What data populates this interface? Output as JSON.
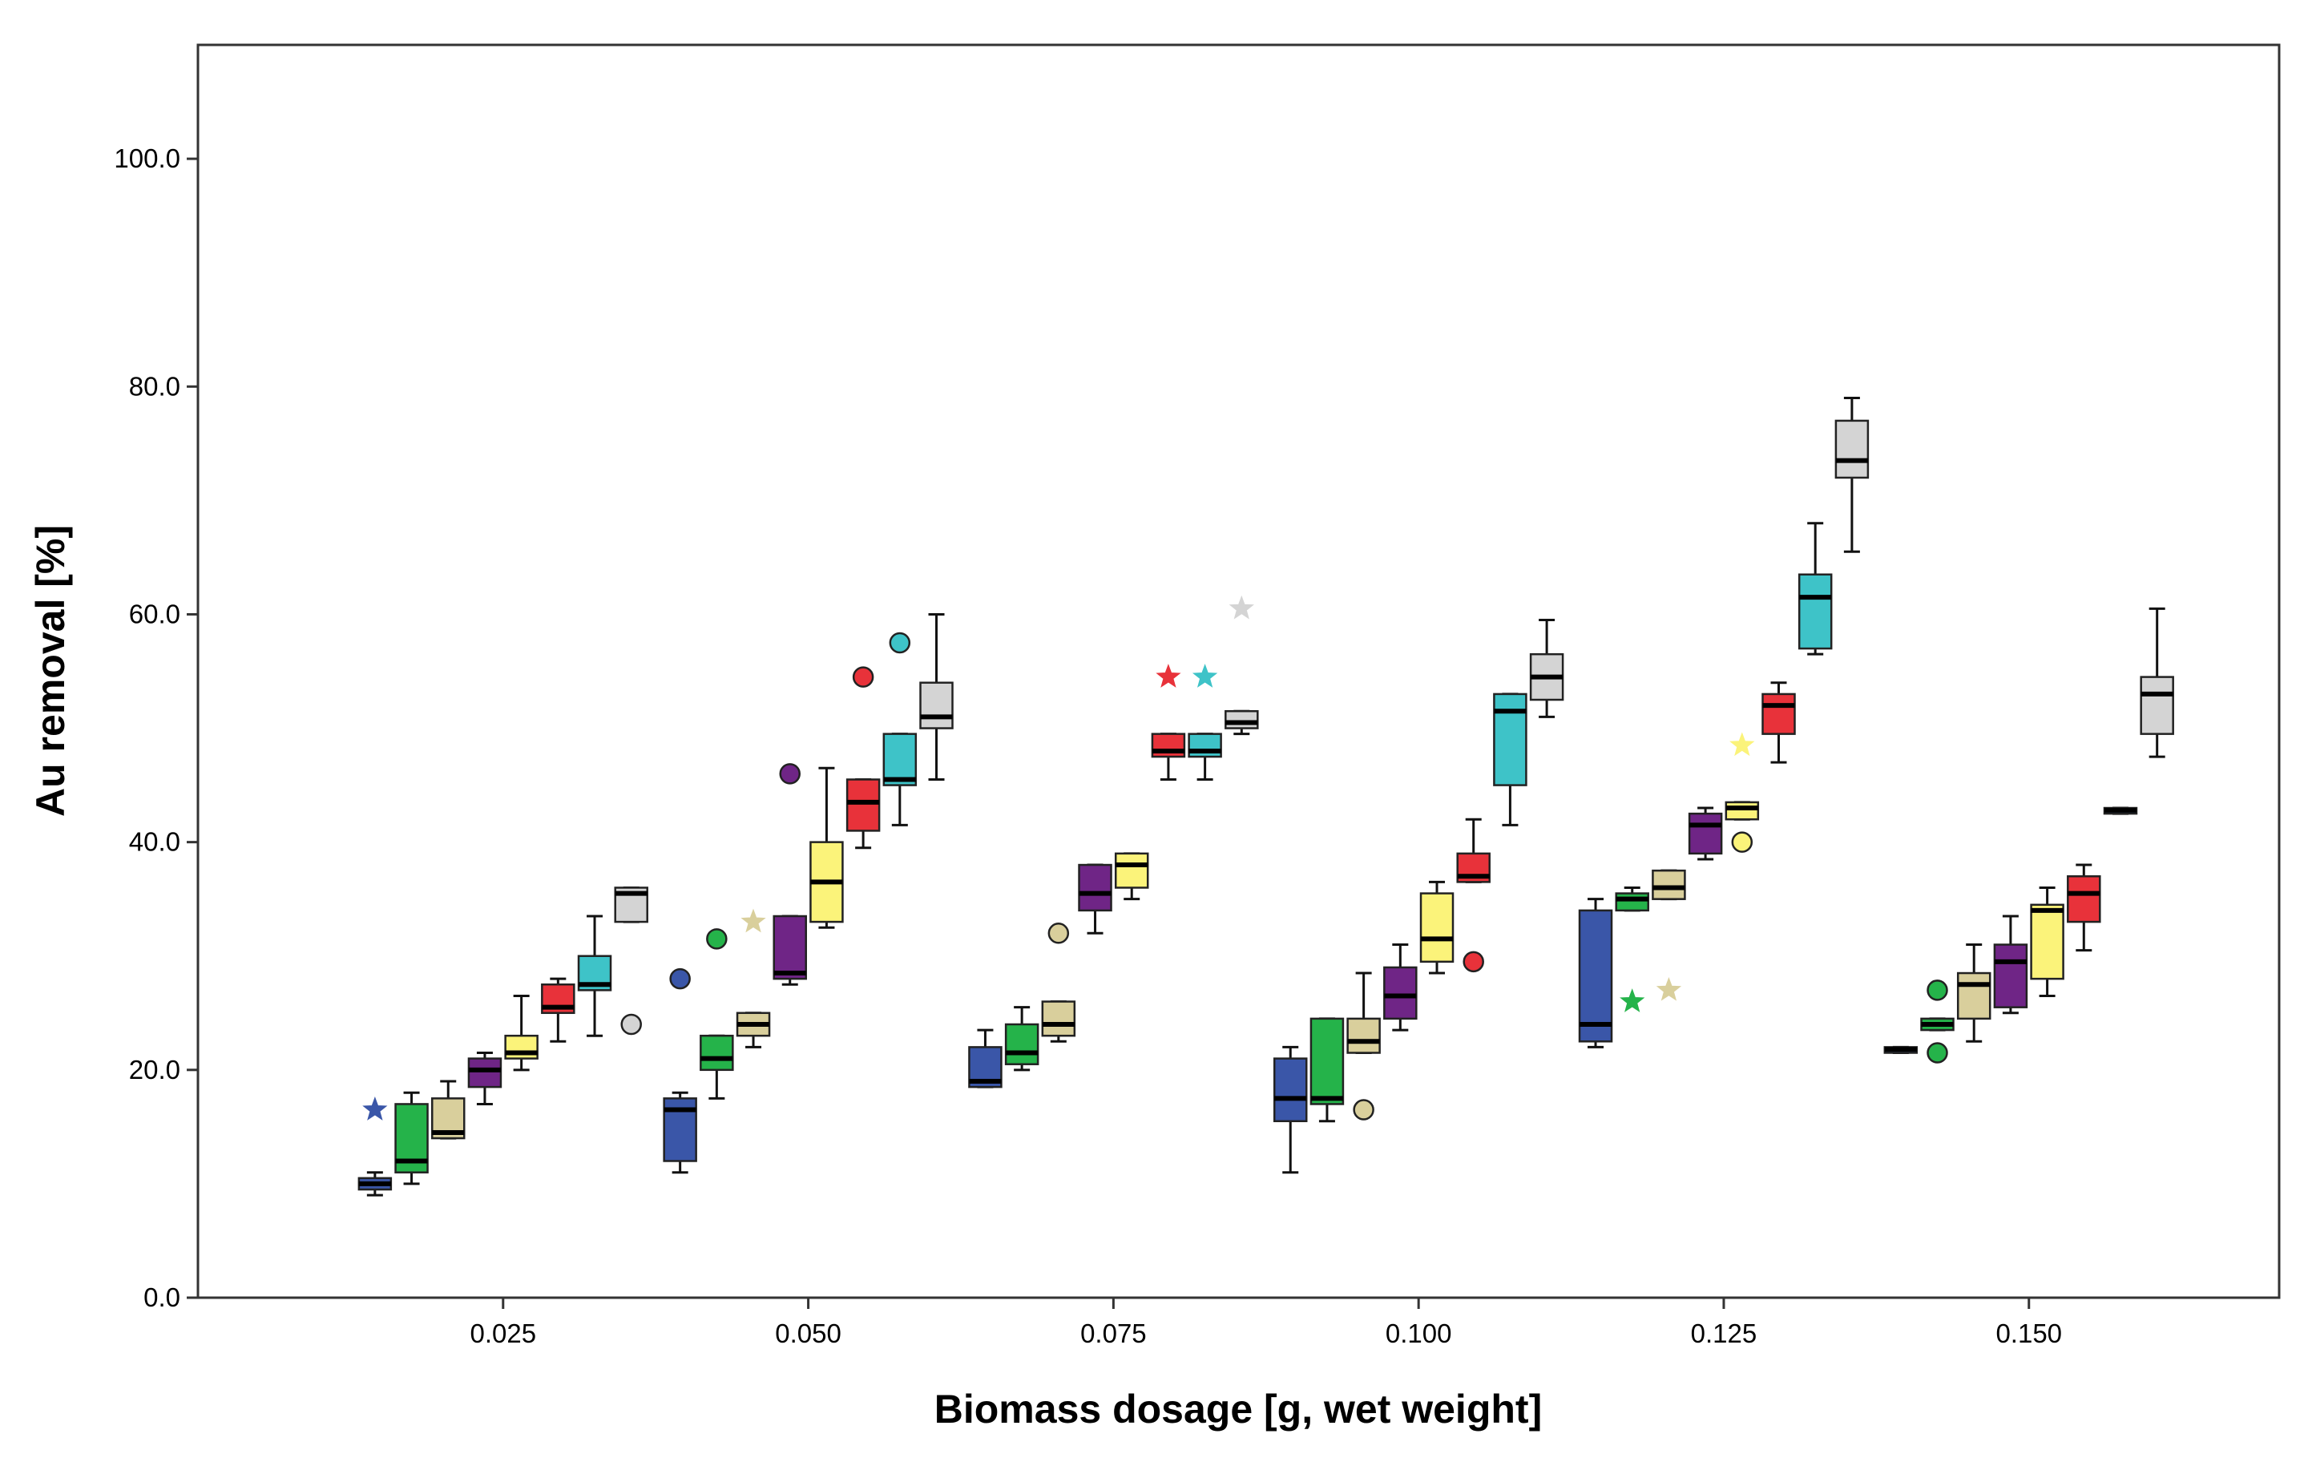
{
  "chart_data": {
    "type": "boxplot",
    "title": "",
    "xlabel": "Biomass dosage [g, wet weight]",
    "ylabel": "Au removal [%]",
    "xlim": [
      0.0,
      0.1705
    ],
    "ylim": [
      0.0,
      110.0
    ],
    "grid": false,
    "legend": "none",
    "x_ticks": [
      {
        "value": 0.025,
        "label": "0.025"
      },
      {
        "value": 0.05,
        "label": "0.050"
      },
      {
        "value": 0.075,
        "label": "0.075"
      },
      {
        "value": 0.1,
        "label": "0.100"
      },
      {
        "value": 0.125,
        "label": "0.125"
      },
      {
        "value": 0.15,
        "label": "0.150"
      }
    ],
    "y_ticks": [
      {
        "value": 0,
        "label": "0.0"
      },
      {
        "value": 20,
        "label": "20.0"
      },
      {
        "value": 40,
        "label": "40.0"
      },
      {
        "value": 60,
        "label": "60.0"
      },
      {
        "value": 80,
        "label": "80.0"
      },
      {
        "value": 100,
        "label": "100.0"
      }
    ],
    "series_colors": {
      "navy": "#3a56a8",
      "green": "#25b34a",
      "tan": "#d9cf9c",
      "purple": "#6f2586",
      "yellow": "#fbf37a",
      "red": "#e8323a",
      "cyan": "#3ec3c8",
      "gray": "#d4d4d4"
    },
    "boxes": [
      {
        "x": 0.0145,
        "series": "navy",
        "min": 9.0,
        "q1": 9.5,
        "median": 10.0,
        "q3": 10.5,
        "max": 11.0,
        "outliers": [
          {
            "y": 16.5,
            "type": "star"
          }
        ]
      },
      {
        "x": 0.0175,
        "series": "green",
        "min": 10.0,
        "q1": 11.0,
        "median": 12.0,
        "q3": 17.0,
        "max": 18.0,
        "outliers": []
      },
      {
        "x": 0.0205,
        "series": "tan",
        "min": 14.0,
        "q1": 14.0,
        "median": 14.5,
        "q3": 17.5,
        "max": 19.0,
        "outliers": []
      },
      {
        "x": 0.0235,
        "series": "purple",
        "min": 17.0,
        "q1": 18.5,
        "median": 20.0,
        "q3": 21.0,
        "max": 21.5,
        "outliers": []
      },
      {
        "x": 0.0265,
        "series": "yellow",
        "min": 20.0,
        "q1": 21.0,
        "median": 21.5,
        "q3": 23.0,
        "max": 26.5,
        "outliers": []
      },
      {
        "x": 0.0295,
        "series": "red",
        "min": 22.5,
        "q1": 25.0,
        "median": 25.5,
        "q3": 27.5,
        "max": 28.0,
        "outliers": []
      },
      {
        "x": 0.0325,
        "series": "cyan",
        "min": 23.0,
        "q1": 27.0,
        "median": 27.5,
        "q3": 30.0,
        "max": 33.5,
        "outliers": []
      },
      {
        "x": 0.0355,
        "series": "gray",
        "min": 33.0,
        "q1": 33.0,
        "median": 35.5,
        "q3": 36.0,
        "max": 36.0,
        "outliers": [
          {
            "y": 24.0,
            "type": "circle"
          }
        ]
      },
      {
        "x": 0.0395,
        "series": "navy",
        "min": 11.0,
        "q1": 12.0,
        "median": 16.5,
        "q3": 17.5,
        "max": 18.0,
        "outliers": [
          {
            "y": 28.0,
            "type": "circle"
          }
        ]
      },
      {
        "x": 0.0425,
        "series": "green",
        "min": 17.5,
        "q1": 20.0,
        "median": 21.0,
        "q3": 23.0,
        "max": 23.0,
        "outliers": [
          {
            "y": 31.5,
            "type": "circle"
          }
        ]
      },
      {
        "x": 0.0455,
        "series": "tan",
        "min": 22.0,
        "q1": 23.0,
        "median": 24.0,
        "q3": 25.0,
        "max": 25.0,
        "outliers": [
          {
            "y": 33.0,
            "type": "star"
          }
        ]
      },
      {
        "x": 0.0485,
        "series": "purple",
        "min": 27.5,
        "q1": 28.0,
        "median": 28.5,
        "q3": 33.5,
        "max": 33.5,
        "outliers": [
          {
            "y": 46.0,
            "type": "circle"
          }
        ]
      },
      {
        "x": 0.0515,
        "series": "yellow",
        "min": 32.5,
        "q1": 33.0,
        "median": 36.5,
        "q3": 40.0,
        "max": 46.5,
        "outliers": []
      },
      {
        "x": 0.0545,
        "series": "red",
        "min": 39.5,
        "q1": 41.0,
        "median": 43.5,
        "q3": 45.5,
        "max": 45.5,
        "outliers": [
          {
            "y": 54.5,
            "type": "circle"
          }
        ]
      },
      {
        "x": 0.0575,
        "series": "cyan",
        "min": 41.5,
        "q1": 45.0,
        "median": 45.5,
        "q3": 49.5,
        "max": 49.5,
        "outliers": [
          {
            "y": 57.5,
            "type": "circle"
          }
        ]
      },
      {
        "x": 0.0605,
        "series": "gray",
        "min": 45.5,
        "q1": 50.0,
        "median": 51.0,
        "q3": 54.0,
        "max": 60.0,
        "outliers": []
      },
      {
        "x": 0.0645,
        "series": "navy",
        "min": 18.5,
        "q1": 18.5,
        "median": 19.0,
        "q3": 22.0,
        "max": 23.5,
        "outliers": []
      },
      {
        "x": 0.0675,
        "series": "green",
        "min": 20.0,
        "q1": 20.5,
        "median": 21.5,
        "q3": 24.0,
        "max": 25.5,
        "outliers": []
      },
      {
        "x": 0.0705,
        "series": "tan",
        "min": 22.5,
        "q1": 23.0,
        "median": 24.0,
        "q3": 26.0,
        "max": 26.0,
        "outliers": [
          {
            "y": 32.0,
            "type": "circle"
          }
        ]
      },
      {
        "x": 0.0735,
        "series": "purple",
        "min": 32.0,
        "q1": 34.0,
        "median": 35.5,
        "q3": 38.0,
        "max": 38.0,
        "outliers": []
      },
      {
        "x": 0.0765,
        "series": "yellow",
        "min": 35.0,
        "q1": 36.0,
        "median": 38.0,
        "q3": 39.0,
        "max": 39.0,
        "outliers": []
      },
      {
        "x": 0.0795,
        "series": "red",
        "min": 45.5,
        "q1": 47.5,
        "median": 48.0,
        "q3": 49.5,
        "max": 49.5,
        "outliers": [
          {
            "y": 54.5,
            "type": "star"
          }
        ]
      },
      {
        "x": 0.0825,
        "series": "cyan",
        "min": 45.5,
        "q1": 47.5,
        "median": 48.0,
        "q3": 49.5,
        "max": 49.5,
        "outliers": [
          {
            "y": 54.5,
            "type": "star"
          }
        ]
      },
      {
        "x": 0.0855,
        "series": "gray",
        "min": 49.5,
        "q1": 50.0,
        "median": 50.5,
        "q3": 51.5,
        "max": 51.5,
        "outliers": [
          {
            "y": 60.5,
            "type": "star"
          }
        ]
      },
      {
        "x": 0.0895,
        "series": "navy",
        "min": 11.0,
        "q1": 15.5,
        "median": 17.5,
        "q3": 21.0,
        "max": 22.0,
        "outliers": []
      },
      {
        "x": 0.0925,
        "series": "green",
        "min": 15.5,
        "q1": 17.0,
        "median": 17.5,
        "q3": 24.5,
        "max": 24.5,
        "outliers": []
      },
      {
        "x": 0.0955,
        "series": "tan",
        "min": 21.5,
        "q1": 21.5,
        "median": 22.5,
        "q3": 24.5,
        "max": 28.5,
        "outliers": [
          {
            "y": 16.5,
            "type": "circle"
          }
        ]
      },
      {
        "x": 0.0985,
        "series": "purple",
        "min": 23.5,
        "q1": 24.5,
        "median": 26.5,
        "q3": 29.0,
        "max": 31.0,
        "outliers": []
      },
      {
        "x": 0.1015,
        "series": "yellow",
        "min": 28.5,
        "q1": 29.5,
        "median": 31.5,
        "q3": 35.5,
        "max": 36.5,
        "outliers": []
      },
      {
        "x": 0.1045,
        "series": "red",
        "min": 36.5,
        "q1": 36.5,
        "median": 37.0,
        "q3": 39.0,
        "max": 42.0,
        "outliers": [
          {
            "y": 29.5,
            "type": "circle"
          }
        ]
      },
      {
        "x": 0.1075,
        "series": "cyan",
        "min": 41.5,
        "q1": 45.0,
        "median": 51.5,
        "q3": 53.0,
        "max": 53.0,
        "outliers": []
      },
      {
        "x": 0.1105,
        "series": "gray",
        "min": 51.0,
        "q1": 52.5,
        "median": 54.5,
        "q3": 56.5,
        "max": 59.5,
        "outliers": []
      },
      {
        "x": 0.1145,
        "series": "navy",
        "min": 22.0,
        "q1": 22.5,
        "median": 24.0,
        "q3": 34.0,
        "max": 35.0,
        "outliers": []
      },
      {
        "x": 0.1175,
        "series": "green",
        "min": 34.0,
        "q1": 34.0,
        "median": 35.0,
        "q3": 35.5,
        "max": 36.0,
        "outliers": [
          {
            "y": 26.0,
            "type": "star"
          }
        ]
      },
      {
        "x": 0.1205,
        "series": "tan",
        "min": 35.0,
        "q1": 35.0,
        "median": 36.0,
        "q3": 37.5,
        "max": 37.5,
        "outliers": [
          {
            "y": 27.0,
            "type": "star"
          }
        ]
      },
      {
        "x": 0.1235,
        "series": "purple",
        "min": 38.5,
        "q1": 39.0,
        "median": 41.5,
        "q3": 42.5,
        "max": 43.0,
        "outliers": []
      },
      {
        "x": 0.1265,
        "series": "yellow",
        "min": 42.0,
        "q1": 42.0,
        "median": 43.0,
        "q3": 43.5,
        "max": 43.5,
        "outliers": [
          {
            "y": 40.0,
            "type": "circle"
          },
          {
            "y": 48.5,
            "type": "star"
          }
        ]
      },
      {
        "x": 0.1295,
        "series": "red",
        "min": 47.0,
        "q1": 49.5,
        "median": 52.0,
        "q3": 53.0,
        "max": 54.0,
        "outliers": []
      },
      {
        "x": 0.1325,
        "series": "cyan",
        "min": 56.5,
        "q1": 57.0,
        "median": 61.5,
        "q3": 63.5,
        "max": 68.0,
        "outliers": []
      },
      {
        "x": 0.1355,
        "series": "gray",
        "min": 65.5,
        "q1": 72.0,
        "median": 73.5,
        "q3": 77.0,
        "max": 79.0,
        "outliers": []
      },
      {
        "x": 0.1395,
        "series": "navy",
        "min": 21.5,
        "q1": 21.5,
        "median": 21.8,
        "q3": 22.0,
        "max": 22.0,
        "outliers": []
      },
      {
        "x": 0.1425,
        "series": "green",
        "min": 23.5,
        "q1": 23.5,
        "median": 24.0,
        "q3": 24.5,
        "max": 24.5,
        "outliers": [
          {
            "y": 27.0,
            "type": "circle"
          },
          {
            "y": 21.5,
            "type": "circle"
          }
        ]
      },
      {
        "x": 0.1455,
        "series": "tan",
        "min": 22.5,
        "q1": 24.5,
        "median": 27.5,
        "q3": 28.5,
        "max": 31.0,
        "outliers": []
      },
      {
        "x": 0.1485,
        "series": "purple",
        "min": 25.0,
        "q1": 25.5,
        "median": 29.5,
        "q3": 31.0,
        "max": 33.5,
        "outliers": []
      },
      {
        "x": 0.1515,
        "series": "yellow",
        "min": 26.5,
        "q1": 28.0,
        "median": 34.0,
        "q3": 34.5,
        "max": 36.0,
        "outliers": []
      },
      {
        "x": 0.1545,
        "series": "red",
        "min": 30.5,
        "q1": 33.0,
        "median": 35.5,
        "q3": 37.0,
        "max": 38.0,
        "outliers": []
      },
      {
        "x": 0.1575,
        "series": "navy",
        "min": 42.5,
        "q1": 42.5,
        "median": 42.8,
        "q3": 43.0,
        "max": 43.0,
        "outliers": []
      },
      {
        "x": 0.1605,
        "series": "gray",
        "min": 47.5,
        "q1": 49.5,
        "median": 53.0,
        "q3": 54.5,
        "max": 60.5,
        "outliers": []
      }
    ]
  }
}
